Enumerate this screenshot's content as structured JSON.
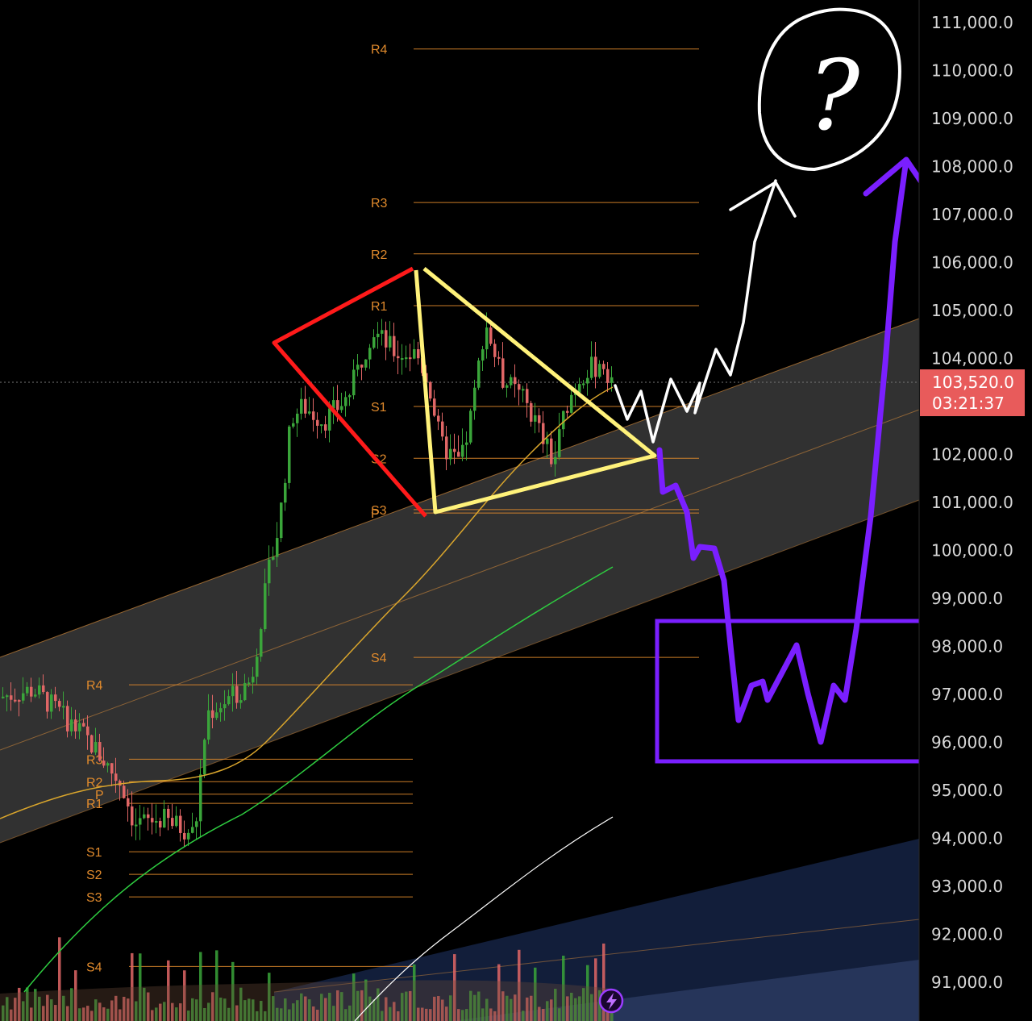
{
  "chart_data": {
    "type": "candlestick",
    "y_axis": {
      "ticks": [
        "111,000.0",
        "110,000.0",
        "109,000.0",
        "108,000.0",
        "107,000.0",
        "106,000.0",
        "105,000.0",
        "104,000.0",
        "102,000.0",
        "101,000.0",
        "100,000.0",
        "99,000.0",
        "98,000.0",
        "97,000.0",
        "96,000.0",
        "95,000.0",
        "94,000.0",
        "93,000.0",
        "92,000.0",
        "91,000.0"
      ],
      "tick_values": [
        111000,
        110000,
        109000,
        108000,
        107000,
        106000,
        105000,
        104000,
        102000,
        101000,
        100000,
        99000,
        98000,
        97000,
        96000,
        95000,
        94000,
        93000,
        92000,
        91000
      ],
      "range": [
        90400,
        111300
      ]
    },
    "current_price": {
      "value": 103520,
      "label": "103,520.0",
      "countdown": "03:21:37"
    },
    "pivots_recent": [
      {
        "label": "R4",
        "value": 110450
      },
      {
        "label": "R3",
        "value": 107250
      },
      {
        "label": "R2",
        "value": 106180
      },
      {
        "label": "R1",
        "value": 105100
      },
      {
        "label": "S1",
        "value": 103000
      },
      {
        "label": "S2",
        "value": 101920
      },
      {
        "label": "S3",
        "value": 100850
      },
      {
        "label": "P",
        "value": 100780
      },
      {
        "label": "S4",
        "value": 97770
      }
    ],
    "pivots_older": [
      {
        "label": "R4",
        "value": 97200
      },
      {
        "label": "R3",
        "value": 95650
      },
      {
        "label": "R2",
        "value": 95180
      },
      {
        "label": "P",
        "value": 94920
      },
      {
        "label": "R1",
        "value": 94730
      },
      {
        "label": "S1",
        "value": 93720
      },
      {
        "label": "S2",
        "value": 93250
      },
      {
        "label": "S3",
        "value": 92780
      },
      {
        "label": "S4",
        "value": 91330
      }
    ],
    "annotations": [
      {
        "type": "question-mark",
        "text": "?"
      }
    ],
    "colors": {
      "up": "#3aa53a",
      "down": "#e06666",
      "pivot": "#e08a2c",
      "ma_short": "#d9a52c",
      "ma_mid": "#2ecc40",
      "ma_long": "#ffffff",
      "red_wedge": "#ff1a1a",
      "yellow_triangle": "#fff27a",
      "purple_path": "#7a1fff",
      "price_tag": "#e85b5b"
    }
  }
}
